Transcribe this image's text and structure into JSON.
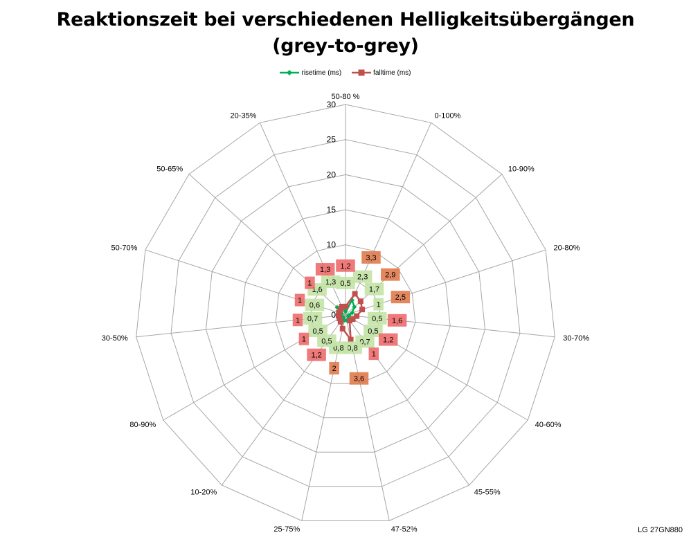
{
  "title_line1": "Reaktionszeit bei verschiedenen Helligkeitsübergängen",
  "title_line2": "(grey-to-grey)",
  "footnote": "LG 27GN880",
  "colors": {
    "rise": "#00b050",
    "fall": "#c0504d",
    "grid": "#a6a6a6",
    "rise_label_bg": "#c4e3a6",
    "fall_label_bg_low": "#ee6b6b",
    "fall_label_bg_high": "#e07a4c"
  },
  "chart_data": {
    "type": "radar",
    "title": "Reaktionszeit bei verschiedenen Helligkeitsübergängen (grey-to-grey)",
    "categories": [
      "50-80 %",
      "0-100%",
      "10-90%",
      "20-80%",
      "30-70%",
      "40-60%",
      "45-55%",
      "47-52%",
      "25-75%",
      "10-20%",
      "80-90%",
      "30-50%",
      "50-70%",
      "50-65%",
      "20-35%"
    ],
    "series": [
      {
        "name": "risetime (ms)",
        "values": [
          0.5,
          2.3,
          1.7,
          1.0,
          0.5,
          0.5,
          0.7,
          0.8,
          0.8,
          0.5,
          0.5,
          0.7,
          0.6,
          1.6,
          1.3
        ],
        "marker": "diamond",
        "labels": [
          "0,5",
          "2,3",
          "1,7",
          "1",
          "0,5",
          "0,5",
          "0,7",
          "0,8",
          "0,8",
          "0,5",
          "0,5",
          "0,7",
          "0,6",
          "1,6",
          "1,3"
        ]
      },
      {
        "name": "falltime (ms)",
        "values": [
          1.2,
          3.3,
          2.9,
          2.5,
          1.6,
          1.2,
          1.0,
          3.6,
          2.0,
          1.2,
          1.0,
          1.0,
          1.0,
          1.0,
          1.3
        ],
        "marker": "square",
        "labels": [
          "1,2",
          "3,3",
          "2,9",
          "2,5",
          "1,6",
          "1,2",
          "1",
          "3,6",
          "2",
          "1,2",
          "1",
          "1",
          "1",
          "1",
          "1,3"
        ]
      }
    ],
    "rlim": [
      0,
      30
    ],
    "ticks": [
      "0",
      "5",
      "10",
      "15",
      "20",
      "25",
      "30"
    ],
    "tick_values": [
      0,
      5,
      10,
      15,
      20,
      25,
      30
    ],
    "legend_position": "top",
    "grid": true
  }
}
